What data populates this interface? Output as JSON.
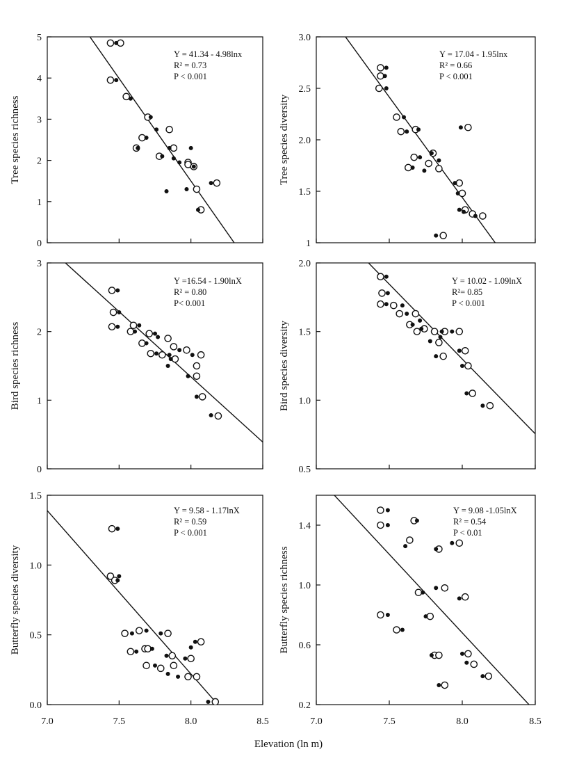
{
  "figure": {
    "xlabel": "Elevation (ln m)"
  },
  "chart_data": [
    {
      "type": "scatter",
      "ylabel": "Tree species richness",
      "xlim": [
        7.0,
        8.5
      ],
      "ylim": [
        0,
        5
      ],
      "yticks": [
        "0",
        "1",
        "2",
        "3",
        "4",
        "5"
      ],
      "xticks": [],
      "annotation": [
        "Y = 41.34 - 4.98lnx",
        "R² = 0.73",
        "P < 0.001"
      ],
      "fit": {
        "intercept": 41.34,
        "slope": -4.98
      },
      "series": [
        {
          "marker": "open",
          "x": [
            7.44,
            7.51,
            7.44,
            7.55,
            7.62,
            7.66,
            7.7,
            7.78,
            7.85,
            7.88,
            7.98,
            7.98,
            8.02,
            8.04,
            8.07,
            8.18
          ],
          "y": [
            4.85,
            4.85,
            3.95,
            3.55,
            2.3,
            2.55,
            3.05,
            2.1,
            2.75,
            2.3,
            1.95,
            1.9,
            1.85,
            1.3,
            0.8,
            1.45
          ]
        },
        {
          "marker": "filled",
          "x": [
            7.48,
            7.48,
            7.58,
            7.63,
            7.69,
            7.72,
            7.76,
            7.8,
            7.83,
            7.85,
            7.88,
            7.92,
            7.97,
            8.0,
            8.02,
            8.05,
            8.14
          ],
          "y": [
            4.85,
            3.95,
            3.5,
            2.3,
            2.55,
            3.05,
            2.75,
            2.1,
            1.25,
            2.3,
            2.05,
            1.95,
            1.3,
            2.3,
            1.85,
            0.8,
            1.45
          ]
        }
      ]
    },
    {
      "type": "scatter",
      "ylabel": "Tree species diversity",
      "xlim": [
        7.0,
        8.5
      ],
      "ylim": [
        1.0,
        3.0
      ],
      "yticks": [
        "1",
        "1.5",
        "2.0",
        "2.5",
        "3.0"
      ],
      "xticks": [],
      "annotation": [
        "Y = 17.04 - 1.95lnx",
        "R² = 0.66",
        "P < 0.001"
      ],
      "fit": {
        "intercept": 17.04,
        "slope": -1.95
      },
      "series": [
        {
          "marker": "open",
          "x": [
            7.44,
            7.44,
            7.43,
            7.55,
            7.58,
            7.63,
            7.67,
            7.68,
            7.77,
            7.8,
            7.84,
            7.87,
            7.98,
            8.0,
            8.02,
            8.07,
            8.14,
            8.04
          ],
          "y": [
            2.7,
            2.62,
            2.5,
            2.22,
            2.08,
            1.73,
            1.83,
            2.1,
            1.77,
            1.87,
            1.72,
            1.07,
            1.58,
            1.48,
            1.32,
            1.28,
            1.26,
            2.12
          ]
        },
        {
          "marker": "filled",
          "x": [
            7.48,
            7.47,
            7.48,
            7.6,
            7.62,
            7.66,
            7.71,
            7.7,
            7.74,
            7.79,
            7.84,
            7.82,
            7.95,
            7.97,
            7.98,
            8.01,
            8.09,
            7.99
          ],
          "y": [
            2.7,
            2.62,
            2.5,
            2.22,
            2.08,
            1.73,
            1.83,
            2.1,
            1.7,
            1.87,
            1.8,
            1.07,
            1.58,
            1.48,
            1.32,
            1.3,
            1.26,
            2.12
          ]
        }
      ]
    },
    {
      "type": "scatter",
      "ylabel": "Bird species richness",
      "xlim": [
        7.0,
        8.5
      ],
      "ylim": [
        0,
        3
      ],
      "yticks": [
        "0",
        "1",
        "2",
        "3"
      ],
      "xticks": [],
      "annotation": [
        "Y =16.54 - 1.90lnX",
        "R² = 0.80",
        "P< 0.001"
      ],
      "fit": {
        "intercept": 16.54,
        "slope": -1.9
      },
      "series": [
        {
          "marker": "open",
          "x": [
            7.45,
            7.46,
            7.45,
            7.58,
            7.6,
            7.66,
            7.71,
            7.72,
            7.8,
            7.84,
            7.88,
            7.89,
            7.97,
            8.04,
            8.04,
            8.07,
            8.08,
            8.19
          ],
          "y": [
            2.6,
            2.28,
            2.07,
            2.0,
            2.09,
            1.83,
            1.97,
            1.68,
            1.66,
            1.9,
            1.78,
            1.6,
            1.73,
            1.5,
            1.35,
            1.66,
            1.05,
            0.77
          ]
        },
        {
          "marker": "filled",
          "x": [
            7.49,
            7.5,
            7.49,
            7.61,
            7.64,
            7.69,
            7.75,
            7.77,
            7.76,
            7.84,
            7.86,
            7.85,
            7.92,
            7.98,
            8.01,
            8.04,
            8.14
          ],
          "y": [
            2.6,
            2.28,
            2.07,
            2.0,
            2.09,
            1.83,
            1.97,
            1.92,
            1.68,
            1.5,
            1.6,
            1.66,
            1.73,
            1.35,
            1.66,
            1.05,
            0.78
          ]
        }
      ]
    },
    {
      "type": "scatter",
      "ylabel": "Bird species diversity",
      "xlim": [
        7.0,
        8.5
      ],
      "ylim": [
        0.5,
        2.0
      ],
      "yticks": [
        "0.5",
        "1.0",
        "1.5",
        "2.0"
      ],
      "xticks": [],
      "annotation": [
        "Y = 10.02 - 1.09lnX",
        "R²= 0.85",
        "P < 0.001"
      ],
      "fit": {
        "intercept": 10.02,
        "slope": -1.09
      },
      "series": [
        {
          "marker": "open",
          "x": [
            7.44,
            7.45,
            7.44,
            7.53,
            7.57,
            7.64,
            7.68,
            7.69,
            7.74,
            7.81,
            7.84,
            7.87,
            7.88,
            7.98,
            8.02,
            8.04,
            8.07,
            8.19
          ],
          "y": [
            1.9,
            1.78,
            1.7,
            1.69,
            1.63,
            1.55,
            1.63,
            1.5,
            1.52,
            1.5,
            1.42,
            1.32,
            1.5,
            1.5,
            1.36,
            1.25,
            1.05,
            0.96
          ]
        },
        {
          "marker": "filled",
          "x": [
            7.48,
            7.49,
            7.48,
            7.59,
            7.62,
            7.66,
            7.71,
            7.72,
            7.78,
            7.82,
            7.85,
            7.86,
            7.93,
            7.98,
            8.0,
            8.03,
            8.14
          ],
          "y": [
            1.9,
            1.78,
            1.7,
            1.69,
            1.63,
            1.55,
            1.58,
            1.52,
            1.43,
            1.32,
            1.46,
            1.5,
            1.5,
            1.36,
            1.25,
            1.05,
            0.96
          ]
        }
      ]
    },
    {
      "type": "scatter",
      "ylabel": "Butterfly species diversity",
      "xlim": [
        7.0,
        8.5
      ],
      "ylim": [
        0.0,
        1.5
      ],
      "yticks": [
        "0.0",
        "0.5",
        "1.0",
        "1.5"
      ],
      "xticks": [
        "7.0",
        "7.5",
        "8.0",
        "8.5"
      ],
      "annotation": [
        "Y = 9.58 - 1.17lnX",
        "R² = 0.59",
        "P < 0.001"
      ],
      "fit": {
        "intercept": 9.58,
        "slope": -1.17
      },
      "series": [
        {
          "marker": "open",
          "x": [
            7.45,
            7.44,
            7.47,
            7.54,
            7.58,
            7.64,
            7.68,
            7.69,
            7.7,
            7.79,
            7.84,
            7.87,
            7.88,
            7.98,
            8.0,
            8.04,
            8.07,
            8.17
          ],
          "y": [
            1.26,
            0.92,
            0.89,
            0.51,
            0.38,
            0.53,
            0.4,
            0.28,
            0.4,
            0.26,
            0.51,
            0.35,
            0.28,
            0.2,
            0.33,
            0.2,
            0.45,
            0.02
          ]
        },
        {
          "marker": "filled",
          "x": [
            7.49,
            7.5,
            7.49,
            7.59,
            7.62,
            7.69,
            7.73,
            7.75,
            7.79,
            7.83,
            7.84,
            7.91,
            7.96,
            8.0,
            8.03,
            8.12
          ],
          "y": [
            1.26,
            0.92,
            0.89,
            0.51,
            0.38,
            0.53,
            0.4,
            0.28,
            0.51,
            0.35,
            0.22,
            0.2,
            0.33,
            0.41,
            0.45,
            0.02
          ]
        }
      ]
    },
    {
      "type": "scatter",
      "ylabel": "Butterfly species richness",
      "xlim": [
        7.0,
        8.5
      ],
      "ylim": [
        0.2,
        1.6
      ],
      "yticks": [
        "0.2",
        "0.6",
        "1.0",
        "1.4"
      ],
      "xticks": [
        "7.0",
        "7.5",
        "8.0",
        "8.5"
      ],
      "annotation": [
        "Y = 9.08 -1.05lnX",
        "R² = 0.54",
        "P < 0.01"
      ],
      "fit": {
        "intercept": 9.08,
        "slope": -1.05
      },
      "series": [
        {
          "marker": "open",
          "x": [
            7.44,
            7.44,
            7.55,
            7.64,
            7.67,
            7.7,
            7.78,
            7.81,
            7.84,
            7.84,
            7.88,
            7.98,
            8.02,
            8.04,
            8.08,
            8.18,
            7.44,
            7.88
          ],
          "y": [
            1.5,
            1.4,
            0.7,
            1.3,
            1.43,
            0.95,
            0.79,
            0.53,
            1.24,
            0.53,
            0.98,
            1.28,
            0.92,
            0.54,
            0.47,
            0.39,
            0.8,
            0.33
          ]
        },
        {
          "marker": "filled",
          "x": [
            7.49,
            7.49,
            7.59,
            7.61,
            7.69,
            7.73,
            7.75,
            7.79,
            7.82,
            7.82,
            7.93,
            7.98,
            8.0,
            8.03,
            8.14,
            7.49,
            7.84
          ],
          "y": [
            1.5,
            1.4,
            0.7,
            1.26,
            1.43,
            0.95,
            0.79,
            0.53,
            1.24,
            0.98,
            1.28,
            0.91,
            0.54,
            0.48,
            0.39,
            0.8,
            0.33
          ]
        }
      ]
    }
  ]
}
